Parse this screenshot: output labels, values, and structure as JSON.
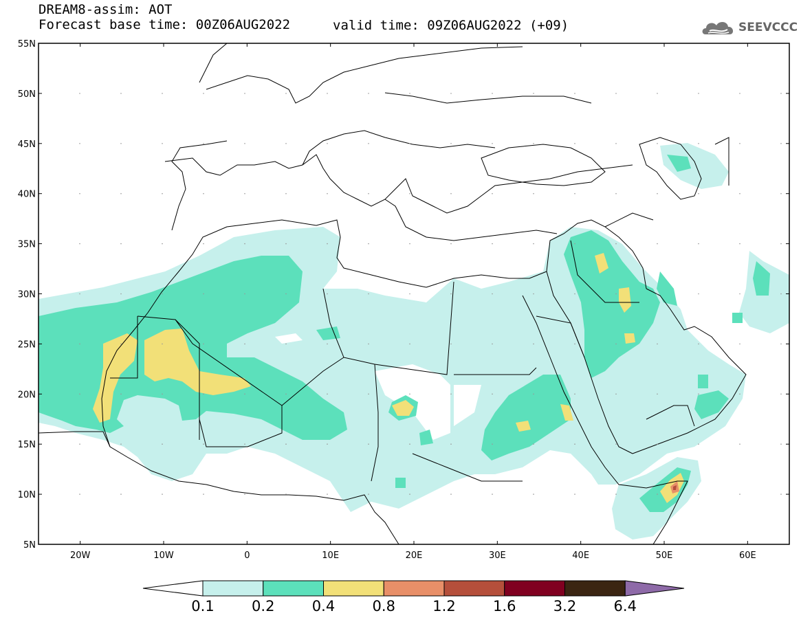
{
  "header": {
    "model_line": "DREAM8-assim: AOT",
    "base_line": "Forecast base time: 00Z06AUG2022",
    "valid_line": "valid time: 09Z06AUG2022 (+09)",
    "logo_text": "SEEVCCC"
  },
  "map": {
    "lat_labels": [
      "55N",
      "50N",
      "45N",
      "40N",
      "35N",
      "30N",
      "25N",
      "20N",
      "15N",
      "10N",
      "5N"
    ],
    "lon_labels": [
      "20W",
      "10W",
      "0",
      "10E",
      "20E",
      "30E",
      "40E",
      "50E",
      "60E"
    ]
  },
  "legend": {
    "thresholds": [
      "0.1",
      "0.2",
      "0.4",
      "0.8",
      "1.2",
      "1.6",
      "3.2",
      "6.4"
    ],
    "colors": [
      "#ffffff",
      "#c6f0ec",
      "#5ce0bb",
      "#f2e078",
      "#e88f68",
      "#b54f3b",
      "#800020",
      "#3b2512",
      "#8e6aa8"
    ]
  }
}
